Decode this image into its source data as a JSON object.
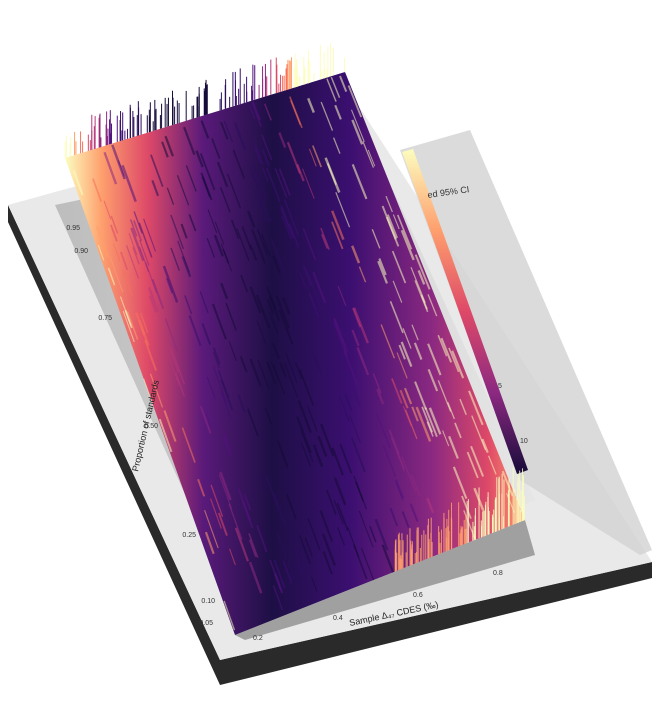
{
  "chart_data": {
    "type": "heatmap",
    "rendering": "3d-perspective-surface",
    "colormap": "magma",
    "colors": {
      "low": "#160b39",
      "mid_low": "#3b0f70",
      "mid": "#8c2981",
      "mid_high": "#de4968",
      "high_orange": "#fe9f6d",
      "high": "#fcfdbf",
      "panel": "#e9e9e9",
      "panel_edge": "#2a2a2a"
    },
    "xlabel": "Sample Δ₄₇ CDES (‰)",
    "ylabel": "Proportion of standards",
    "x_ticks": [
      "0.2",
      "0.4",
      "0.6",
      "0.8"
    ],
    "y_ticks": [
      "0.05",
      "0.10",
      "0.25",
      "0.50",
      "0.75",
      "0.90",
      "0.95"
    ],
    "xlim": [
      0.2,
      0.8
    ],
    "ylim": [
      0.05,
      0.95
    ],
    "legend_title": "ed 95% CI",
    "legend_ticks": [
      "5",
      "10"
    ],
    "legend_placement": "right"
  }
}
